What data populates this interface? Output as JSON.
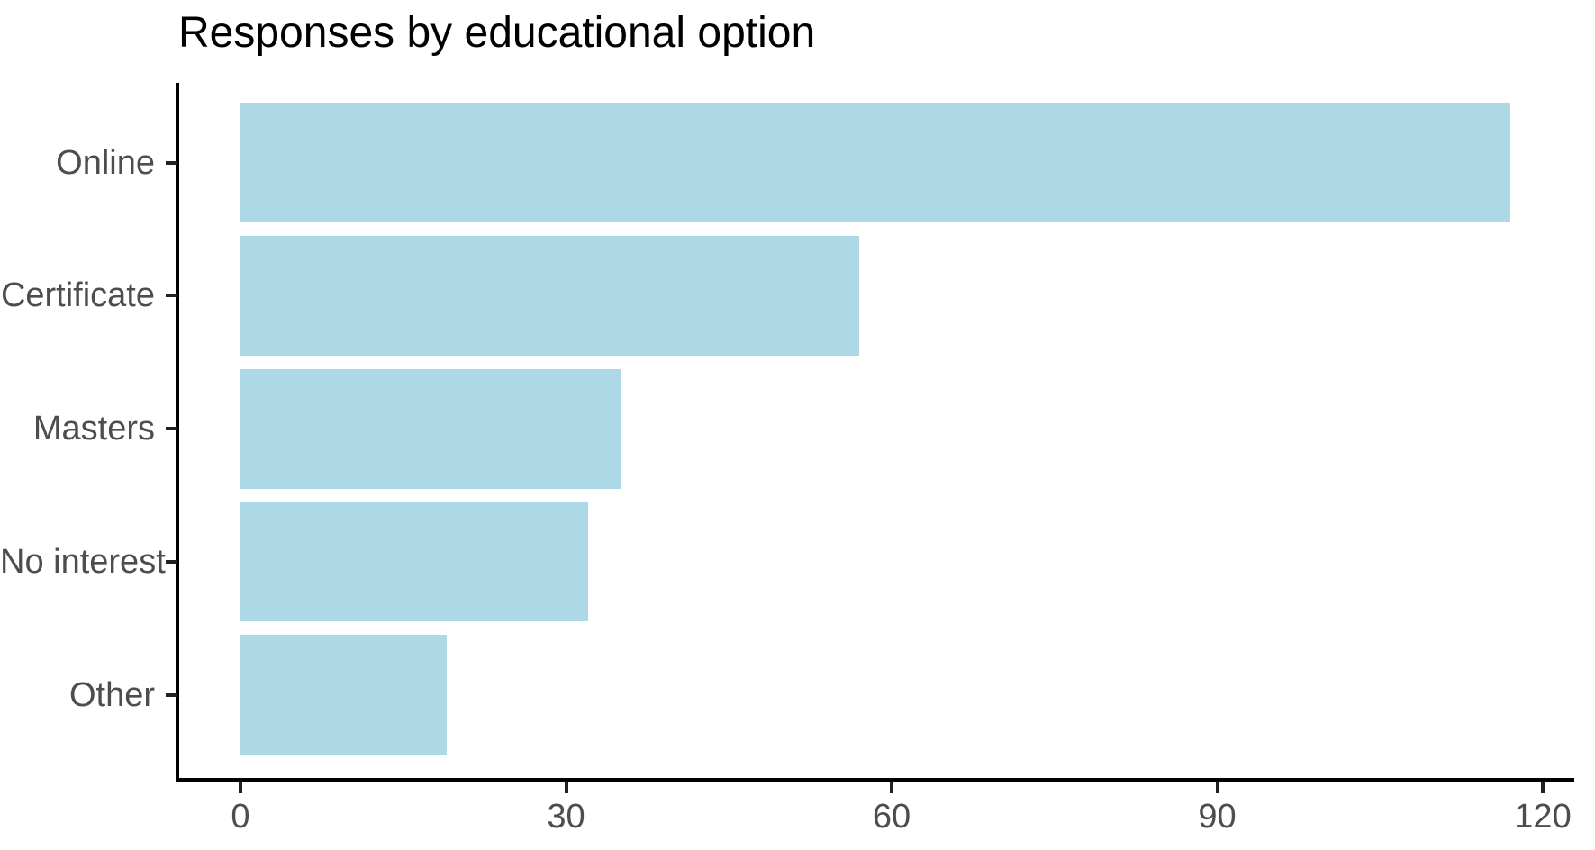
{
  "chart_data": {
    "type": "bar",
    "orientation": "horizontal",
    "title": "Responses by educational option",
    "categories": [
      "Online",
      "Certificate",
      "Masters",
      "No interest",
      "Other"
    ],
    "values": [
      117,
      57,
      35,
      32,
      19
    ],
    "x_ticks": [
      0,
      30,
      60,
      90,
      120
    ],
    "xlim": [
      0,
      120
    ],
    "xlabel": "",
    "ylabel": "",
    "grid": false,
    "legend": false,
    "bar_color": "#ADD8E6",
    "axis_color": "#000000",
    "tick_label_color": "#4D4D4D",
    "title_color": "#000000"
  }
}
